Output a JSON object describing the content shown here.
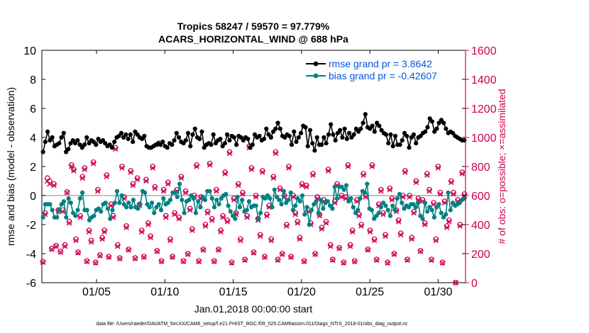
{
  "chart_data": {
    "type": "line",
    "title": "Tropics 58247 / 59570 = 97.779%",
    "subtitle": "ACARS_HORIZONTAL_WIND @ 688 hPa",
    "xlabel": "Jan.01,2018 00:00:00 start",
    "ylabel": "rmse and bias (model - observation)",
    "y2label": "# of obs: o=possible; ×=assimilated",
    "xlim": [
      1.0,
      32.0
    ],
    "ylim": [
      -6,
      10
    ],
    "y2lim": [
      0,
      1600
    ],
    "grid": false,
    "legend_position": "top-right",
    "x_ticks": [
      {
        "value": 5,
        "label": "01/05"
      },
      {
        "value": 10,
        "label": "01/10"
      },
      {
        "value": 15,
        "label": "01/15"
      },
      {
        "value": 20,
        "label": "01/20"
      },
      {
        "value": 25,
        "label": "01/25"
      },
      {
        "value": 30,
        "label": "01/30"
      }
    ],
    "y_ticks": [
      -6,
      -4,
      -2,
      0,
      2,
      4,
      6,
      8,
      10
    ],
    "y2_ticks": [
      0,
      200,
      400,
      600,
      800,
      1000,
      1200,
      1400,
      1600
    ],
    "zero_line": 0,
    "series": [
      {
        "name": "rmse grand pr = 3.8642",
        "axis": "left",
        "color": "#000000",
        "values": [
          3.0,
          3.7,
          4.4,
          3.8,
          4.0,
          3.4,
          3.5,
          3.6,
          4.0,
          4.3,
          3.0,
          3.2,
          3.6,
          3.8,
          3.6,
          3.8,
          3.5,
          3.3,
          3.5,
          4.0,
          3.6,
          3.8,
          3.7,
          3.5,
          3.9,
          3.7,
          3.8,
          3.6,
          3.4,
          3.5,
          3.3,
          3.7,
          4.0,
          4.1,
          4.3,
          4.0,
          4.2,
          3.9,
          4.2,
          3.7,
          4.4,
          4.2,
          4.0,
          3.9,
          4.1,
          3.4,
          3.3,
          3.3,
          3.4,
          3.5,
          3.6,
          3.5,
          3.7,
          3.4,
          3.3,
          3.6,
          3.5,
          3.8,
          4.3,
          4.0,
          3.7,
          3.6,
          3.8,
          4.3,
          3.4,
          4.2,
          4.6,
          4.0,
          3.9,
          4.4,
          3.3,
          3.5,
          3.6,
          3.5,
          4.2,
          3.6,
          3.8,
          3.9,
          3.4,
          3.6,
          4.2,
          3.8,
          4.1,
          4.0,
          3.5,
          4.1,
          4.0,
          3.8,
          4.0,
          3.9,
          3.3,
          3.5,
          4.2,
          4.0,
          4.1,
          3.8,
          3.9,
          4.6,
          4.2,
          4.0,
          4.4,
          4.6,
          5.0,
          4.6,
          4.1,
          4.0,
          4.2,
          4.1,
          3.5,
          4.4,
          3.7,
          4.0,
          4.3,
          4.8,
          4.7,
          3.4,
          4.5,
          3.6,
          3.1,
          4.0,
          3.5,
          3.5,
          4.0,
          3.6,
          4.2,
          4.9,
          4.2,
          3.8,
          4.3,
          4.5,
          4.0,
          4.6,
          3.9,
          4.3,
          4.0,
          4.2,
          4.6,
          4.4,
          4.6,
          5.0,
          5.6,
          4.7,
          4.6,
          4.8,
          4.4,
          5.0,
          4.8,
          4.5,
          4.3,
          4.2,
          3.6,
          4.2,
          3.4,
          4.1,
          3.5,
          3.5,
          3.8,
          4.3,
          4.1,
          3.3,
          4.0,
          4.2,
          3.6,
          4.0,
          4.1,
          4.3,
          4.4,
          4.7,
          5.3,
          5.1,
          4.4,
          4.6,
          5.0,
          5.2,
          5.0,
          4.6,
          4.3,
          4.4,
          4.3,
          4.1,
          4.0,
          3.9,
          3.8,
          3.8
        ]
      },
      {
        "name": "bias grand pr = -0.42607",
        "axis": "left",
        "color": "#008080",
        "values": [
          -1.5,
          -0.6,
          -0.6,
          -0.6,
          -1.0,
          -1.5,
          -1.5,
          -1.0,
          -0.6,
          -0.4,
          -1.5,
          -0.2,
          -0.5,
          -1.2,
          -1.4,
          -1.0,
          -0.2,
          0.2,
          -1.0,
          -1.0,
          -1.7,
          -1.5,
          -1.4,
          -1.0,
          -0.9,
          -1.1,
          -0.6,
          -0.5,
          -0.9,
          -1.6,
          -1.0,
          -0.5,
          0.3,
          -0.5,
          0.0,
          -0.6,
          -0.8,
          -0.5,
          -0.8,
          -0.3,
          -0.8,
          -0.9,
          -0.6,
          0.3,
          0.2,
          -0.6,
          -0.8,
          -0.5,
          -1.2,
          -0.8,
          -0.6,
          -1.0,
          -0.2,
          -0.6,
          -0.5,
          -0.3,
          0.2,
          0.2,
          -0.1,
          0.8,
          -0.3,
          -1.2,
          -0.4,
          -0.3,
          0.0,
          -0.2,
          -1.2,
          -0.4,
          -0.8,
          -0.1,
          -0.3,
          0.3,
          0.3,
          -0.2,
          -0.8,
          -0.3,
          -0.6,
          -0.2,
          0.0,
          0.1,
          -0.7,
          -1.1,
          -1.4,
          -1.6,
          -0.1,
          -0.8,
          -0.3,
          -1.1,
          -1.0,
          -0.4,
          -0.8,
          -0.7,
          -0.7,
          -1.6,
          -1.2,
          -0.1,
          -0.2,
          0.0,
          -0.2,
          -0.8,
          0.4,
          -0.1,
          -0.3,
          -0.6,
          0.3,
          -0.5,
          -0.3,
          0.2,
          -1.0,
          -0.7,
          -0.2,
          -0.4,
          0.0,
          -1.3,
          -0.8,
          -2.0,
          -1.0,
          -0.6,
          -0.4,
          -1.2,
          -0.3,
          -0.9,
          -0.5,
          -0.4,
          -0.7,
          -0.9,
          0.6,
          -0.2,
          0.6,
          0.6,
          0.4,
          0.7,
          -0.4,
          -0.2,
          -0.8,
          -1.2,
          -1.0,
          -0.2,
          0.3,
          0.2,
          0.8,
          -0.9,
          -1.0,
          -1.6,
          -1.4,
          -1.2,
          -0.8,
          -0.5,
          -0.7,
          -1.0,
          -1.4,
          -0.7,
          -1.0,
          -0.2,
          0.1,
          -0.5,
          -0.9,
          -0.7,
          -0.8,
          -0.6,
          -0.6,
          -0.8,
          -0.5,
          -1.4,
          -1.6,
          -0.5,
          -1.1,
          -0.8,
          -1.0,
          -1.5,
          -0.8,
          -0.6,
          -1.2,
          -1.5,
          -1.3,
          0.2,
          -1.0,
          -0.5,
          -0.7,
          -0.6,
          -0.5,
          -0.3,
          -0.2
        ]
      },
      {
        "name": "possible",
        "axis": "right",
        "marker": "circle",
        "color": "#cc0055",
        "values": [
          145,
          480,
          720,
          700,
          235,
          680,
          255,
          500,
          215,
          500,
          260,
          625,
          420,
          810,
          780,
          300,
          210,
          460,
          730,
          790,
          150,
          360,
          290,
          830,
          140,
          640,
          190,
          310,
          360,
          740,
          180,
          540,
          460,
          930,
          260,
          170,
          800,
          590,
          390,
          230,
          770,
          680,
          170,
          720,
          540,
          360,
          180,
          710,
          410,
          320,
          800,
          660,
          220,
          960,
          150,
          640,
          460,
          690,
          300,
          180,
          480,
          640,
          450,
          730,
          150,
          630,
          200,
          510,
          370,
          600,
          810,
          150,
          590,
          230,
          400,
          490,
          820,
          440,
          150,
          640,
          230,
          360,
          460,
          760,
          430,
          900,
          140,
          580,
          480,
          680,
          300,
          620,
          160,
          460,
          940,
          790,
          210,
          600,
          440,
          330,
          770,
          180,
          470,
          530,
          300,
          730,
          900,
          160,
          650,
          200,
          600,
          400,
          800,
          180,
          600,
          480,
          420,
          310,
          680,
          150,
          670,
          500,
          410,
          750,
          200,
          590,
          470,
          380,
          570,
          420,
          780,
          260,
          160,
          560,
          680,
          240,
          600,
          140,
          590,
          810,
          260,
          360,
          150,
          570,
          470,
          400,
          750,
          600,
          230,
          360,
          810,
          300,
          160,
          540,
          640,
          480,
          330,
          140,
          650,
          580,
          200,
          500,
          430,
          340,
          600,
          770,
          160,
          600,
          310,
          490,
          700,
          580,
          220,
          570,
          410,
          750,
          640,
          160,
          550,
          300,
          800,
          620,
          140,
          560,
          390,
          430,
          700,
          620,
          0,
          570,
          400,
          760,
          610
        ]
      },
      {
        "name": "assimilated",
        "axis": "right",
        "marker": "x",
        "color": "#cc0055",
        "values": [
          140,
          470,
          700,
          680,
          230,
          670,
          250,
          490,
          210,
          490,
          250,
          620,
          410,
          800,
          770,
          290,
          205,
          450,
          720,
          780,
          145,
          350,
          280,
          820,
          135,
          630,
          185,
          300,
          350,
          730,
          175,
          530,
          450,
          920,
          250,
          165,
          790,
          580,
          380,
          225,
          760,
          670,
          165,
          710,
          530,
          350,
          175,
          700,
          400,
          310,
          790,
          650,
          215,
          950,
          145,
          630,
          450,
          680,
          290,
          175,
          470,
          630,
          440,
          720,
          145,
          620,
          195,
          500,
          360,
          590,
          800,
          145,
          580,
          225,
          390,
          480,
          810,
          430,
          145,
          630,
          225,
          350,
          450,
          750,
          420,
          890,
          135,
          570,
          470,
          670,
          290,
          610,
          155,
          450,
          930,
          780,
          205,
          590,
          430,
          320,
          760,
          175,
          460,
          520,
          290,
          720,
          890,
          155,
          640,
          195,
          590,
          390,
          790,
          175,
          590,
          470,
          410,
          300,
          670,
          145,
          660,
          490,
          400,
          740,
          195,
          580,
          460,
          370,
          560,
          410,
          770,
          250,
          155,
          550,
          670,
          235,
          590,
          135,
          580,
          800,
          250,
          350,
          145,
          560,
          460,
          390,
          740,
          590,
          225,
          350,
          800,
          290,
          155,
          530,
          630,
          470,
          320,
          135,
          640,
          570,
          195,
          490,
          420,
          330,
          590,
          760,
          155,
          590,
          300,
          480,
          690,
          570,
          215,
          560,
          400,
          740,
          630,
          155,
          540,
          290,
          790,
          610,
          135,
          550,
          380,
          420,
          690,
          610,
          0,
          560,
          390,
          750,
          600
        ]
      }
    ]
  },
  "footer": {
    "data_file": "data file: /Users/raeder/DAI/ATM_forcXX/CAM6_setup/f.e21.FHIST_BGC.f09_025.CAM6assim.011/Diags_NTrS_2018-01/obs_diag_output.nc"
  },
  "colors": {
    "rmse": "#000000",
    "bias": "#008080",
    "obs": "#cc0055",
    "right_axis": "#cc0055",
    "legend_text": "#0055dd",
    "zero_line": "#aaaaaa"
  }
}
